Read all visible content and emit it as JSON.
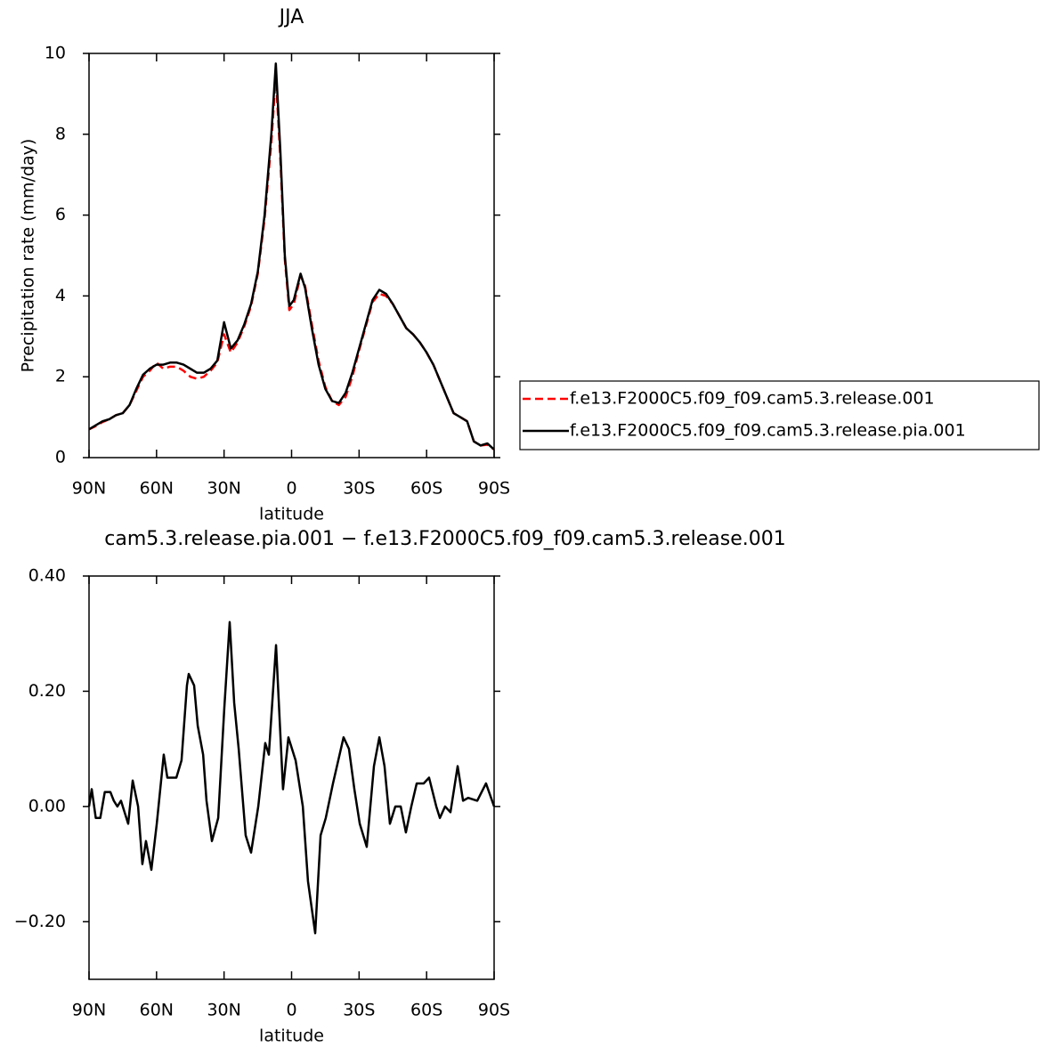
{
  "chart_data": [
    {
      "type": "line",
      "title": "JJA",
      "xlabel": "latitude",
      "ylabel": "Precipitation rate (mm/day)",
      "xlim": [
        90,
        -90
      ],
      "xticks": [
        {
          "value": 90,
          "label": "90N"
        },
        {
          "value": 60,
          "label": "60N"
        },
        {
          "value": 30,
          "label": "30N"
        },
        0,
        {
          "value": -30,
          "label": "30S"
        },
        {
          "value": -60,
          "label": "60S"
        },
        {
          "value": -90,
          "label": "90S"
        }
      ],
      "ylim": [
        0,
        10
      ],
      "yticks": [
        0,
        2,
        4,
        6,
        8,
        10
      ],
      "legend": "right",
      "x": [
        90,
        87,
        84,
        81,
        78,
        75,
        72,
        69,
        66,
        63,
        60,
        57,
        54,
        51,
        48,
        45,
        42,
        39,
        36,
        33,
        30,
        27,
        24,
        21,
        18,
        15,
        12,
        9,
        7,
        5,
        3,
        1,
        -1,
        -4,
        -6,
        -9,
        -12,
        -15,
        -18,
        -21,
        -24,
        -27,
        -30,
        -33,
        -36,
        -39,
        -42,
        -45,
        -48,
        -51,
        -54,
        -57,
        -60,
        -63,
        -66,
        -69,
        -72,
        -75,
        -78,
        -81,
        -84,
        -87,
        -90
      ],
      "series": [
        {
          "name": "f.e13.F2000C5.f09_f09.cam5.3.release.001",
          "color": "#ff0000",
          "dashed": true,
          "values": [
            0.7,
            0.78,
            0.88,
            0.95,
            1.05,
            1.1,
            1.3,
            1.65,
            2.0,
            2.15,
            2.35,
            2.2,
            2.25,
            2.25,
            2.15,
            2.0,
            1.95,
            2.0,
            2.15,
            2.35,
            3.05,
            2.6,
            2.85,
            3.25,
            3.75,
            4.55,
            5.9,
            7.8,
            9.45,
            7.4,
            4.9,
            3.65,
            3.8,
            4.5,
            4.25,
            3.3,
            2.4,
            1.75,
            1.4,
            1.3,
            1.5,
            2.0,
            2.65,
            3.25,
            3.85,
            4.05,
            4.0,
            3.8,
            3.5,
            3.2,
            3.05,
            2.85,
            2.6,
            2.3,
            1.9,
            1.5,
            1.1,
            1.0,
            0.9,
            0.4,
            0.3,
            0.32,
            0.2
          ]
        },
        {
          "name": "f.e13.F2000C5.f09_f09.cam5.3.release.pia.001",
          "color": "#000000",
          "dashed": false,
          "values": [
            0.7,
            0.8,
            0.9,
            0.95,
            1.05,
            1.1,
            1.3,
            1.7,
            2.05,
            2.2,
            2.3,
            2.3,
            2.35,
            2.35,
            2.3,
            2.2,
            2.1,
            2.1,
            2.2,
            2.4,
            3.35,
            2.7,
            2.9,
            3.3,
            3.8,
            4.6,
            6.0,
            8.0,
            9.75,
            7.6,
            5.0,
            3.75,
            3.9,
            4.55,
            4.2,
            3.2,
            2.3,
            1.7,
            1.4,
            1.35,
            1.6,
            2.1,
            2.7,
            3.3,
            3.9,
            4.15,
            4.05,
            3.8,
            3.5,
            3.2,
            3.05,
            2.85,
            2.6,
            2.3,
            1.9,
            1.5,
            1.1,
            1.0,
            0.9,
            0.4,
            0.3,
            0.35,
            0.2
          ]
        }
      ]
    },
    {
      "type": "line",
      "title": "cam5.3.release.pia.001 − f.e13.F2000C5.f09_f09.cam5.3.release.001",
      "xlabel": "latitude",
      "xlim": [
        90,
        -90
      ],
      "xticks": [
        {
          "value": 90,
          "label": "90N"
        },
        {
          "value": 60,
          "label": "60N"
        },
        {
          "value": 30,
          "label": "30N"
        },
        0,
        {
          "value": -30,
          "label": "30S"
        },
        {
          "value": -60,
          "label": "60S"
        },
        {
          "value": -90,
          "label": "90S"
        }
      ],
      "ylim": [
        -0.3,
        0.4
      ],
      "yticks": [
        {
          "value": 0.4,
          "label": "0.40"
        },
        {
          "value": 0.2,
          "label": "0.20"
        },
        {
          "value": 0,
          "label": "0.00"
        },
        {
          "value": -0.2,
          "label": "−0.20"
        }
      ],
      "x": [
        90,
        88.8,
        87,
        85,
        83,
        80.5,
        79,
        77.4,
        75.8,
        74.2,
        72.6,
        70.6,
        68.2,
        66.3,
        64.7,
        62.3,
        59.9,
        56.8,
        55.2,
        51.2,
        48.9,
        46.5,
        45.7,
        43.3,
        41.7,
        39.3,
        37.8,
        35.4,
        32.6,
        29.9,
        27.5,
        25.5,
        23.5,
        20.4,
        18,
        14.8,
        11.7,
        10.1,
        6.9,
        3.8,
        1.4,
        -1.8,
        -5,
        -7.3,
        -10.5,
        -12.9,
        -15.2,
        -18.4,
        -23.1,
        -25.5,
        -27.9,
        -30.3,
        -33.4,
        -36.6,
        -39,
        -41.3,
        -43.7,
        -46.1,
        -48.5,
        -50.8,
        -53.2,
        -55.6,
        -58.7,
        -61.1,
        -64.3,
        -65.9,
        -68.2,
        -70.6,
        -73.8,
        -76.2,
        -78.5,
        -82.5,
        -86.4,
        -90
      ],
      "series": [
        {
          "color": "#000000",
          "dashed": false,
          "values": [
            0,
            0.03,
            -0.02,
            -0.02,
            0.025,
            0.025,
            0.01,
            0,
            0.01,
            -0.01,
            -0.03,
            0.045,
            0,
            -0.1,
            -0.06,
            -0.11,
            -0.03,
            0.09,
            0.05,
            0.05,
            0.08,
            0.21,
            0.23,
            0.21,
            0.14,
            0.09,
            0.01,
            -0.06,
            -0.02,
            0.17,
            0.32,
            0.18,
            0.1,
            -0.05,
            -0.08,
            0,
            0.11,
            0.09,
            0.28,
            0.03,
            0.12,
            0.08,
            0,
            -0.13,
            -0.22,
            -0.05,
            -0.02,
            0.04,
            0.12,
            0.1,
            0.03,
            -0.03,
            -0.07,
            0.07,
            0.12,
            0.07,
            -0.03,
            0,
            0,
            -0.045,
            0,
            0.04,
            0.04,
            0.05,
            0,
            -0.02,
            0,
            -0.01,
            0.07,
            0.01,
            0.015,
            0.01,
            0.04,
            0
          ]
        }
      ]
    }
  ]
}
